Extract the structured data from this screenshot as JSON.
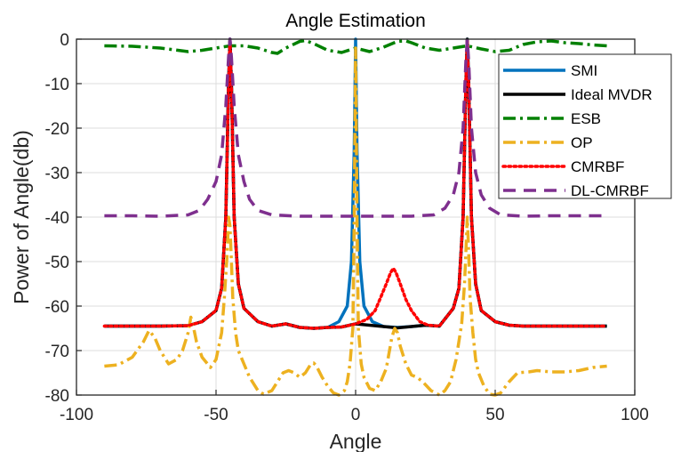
{
  "chart_data": {
    "type": "line",
    "title": "Angle Estimation",
    "xlabel": "Angle",
    "ylabel": "Power of Angle(db)",
    "xlim": [
      -100,
      100
    ],
    "ylim": [
      -80,
      0
    ],
    "xticks": [
      -100,
      -50,
      0,
      50,
      100
    ],
    "yticks": [
      0,
      -10,
      -20,
      -30,
      -40,
      -50,
      -60,
      -70,
      -80
    ],
    "xtick_labels": [
      "-100",
      "-50",
      "0",
      "50",
      "100"
    ],
    "ytick_labels": [
      "0",
      "-10",
      "-20",
      "-30",
      "-40",
      "-50",
      "-60",
      "-70",
      "-80"
    ],
    "grid": true,
    "legend_position": "top-right",
    "series": [
      {
        "name": "SMI",
        "color": "#0072BD",
        "style": "solid",
        "points": [
          [
            -90,
            -64.5
          ],
          [
            -70,
            -64.5
          ],
          [
            -60,
            -64.4
          ],
          [
            -55,
            -63.5
          ],
          [
            -50,
            -61
          ],
          [
            -48,
            -56
          ],
          [
            -46.5,
            -40
          ],
          [
            -45.5,
            -10
          ],
          [
            -45,
            0
          ],
          [
            -44.5,
            -10
          ],
          [
            -43.5,
            -40
          ],
          [
            -42,
            -55
          ],
          [
            -40,
            -60.5
          ],
          [
            -35,
            -63.5
          ],
          [
            -30,
            -64.5
          ],
          [
            -25,
            -64
          ],
          [
            -20,
            -64.8
          ],
          [
            -15,
            -65
          ],
          [
            -10,
            -64.8
          ],
          [
            -6,
            -63.5
          ],
          [
            -3,
            -60
          ],
          [
            -1.5,
            -50
          ],
          [
            -0.5,
            -25
          ],
          [
            0,
            0
          ],
          [
            0.5,
            -25
          ],
          [
            1.5,
            -50
          ],
          [
            3,
            -60
          ],
          [
            6,
            -63.5
          ],
          [
            10,
            -64.6
          ],
          [
            15,
            -64.8
          ],
          [
            20,
            -64.6
          ],
          [
            25,
            -64.3
          ],
          [
            30,
            -64.5
          ],
          [
            35,
            -60.5
          ],
          [
            37,
            -56
          ],
          [
            38.5,
            -40
          ],
          [
            39.5,
            -10
          ],
          [
            40,
            0
          ],
          [
            40.5,
            -10
          ],
          [
            41.5,
            -40
          ],
          [
            43,
            -55
          ],
          [
            45,
            -61
          ],
          [
            50,
            -63.5
          ],
          [
            55,
            -64.3
          ],
          [
            60,
            -64.5
          ],
          [
            70,
            -64.5
          ],
          [
            80,
            -64.5
          ],
          [
            90,
            -64.5
          ]
        ]
      },
      {
        "name": "Ideal MVDR",
        "color": "#000000",
        "style": "solid",
        "points": [
          [
            -90,
            -64.5
          ],
          [
            -70,
            -64.5
          ],
          [
            -60,
            -64.4
          ],
          [
            -55,
            -63.5
          ],
          [
            -50,
            -61
          ],
          [
            -48,
            -56
          ],
          [
            -46.5,
            -40
          ],
          [
            -45.5,
            -10
          ],
          [
            -45,
            0
          ],
          [
            -44.5,
            -10
          ],
          [
            -43.5,
            -40
          ],
          [
            -42,
            -55
          ],
          [
            -40,
            -60.5
          ],
          [
            -35,
            -63.5
          ],
          [
            -30,
            -64.5
          ],
          [
            -25,
            -64
          ],
          [
            -20,
            -64.8
          ],
          [
            -15,
            -65
          ],
          [
            -10,
            -64.8
          ],
          [
            -5,
            -64.7
          ],
          [
            0,
            -64
          ],
          [
            5,
            -64.3
          ],
          [
            10,
            -64.6
          ],
          [
            15,
            -64.9
          ],
          [
            20,
            -64.6
          ],
          [
            25,
            -64.3
          ],
          [
            30,
            -64.5
          ],
          [
            35,
            -60.5
          ],
          [
            37,
            -56
          ],
          [
            38.5,
            -40
          ],
          [
            39.5,
            -10
          ],
          [
            40,
            0
          ],
          [
            40.5,
            -10
          ],
          [
            41.5,
            -40
          ],
          [
            43,
            -55
          ],
          [
            45,
            -61
          ],
          [
            50,
            -63.5
          ],
          [
            55,
            -64.3
          ],
          [
            60,
            -64.5
          ],
          [
            70,
            -64.5
          ],
          [
            80,
            -64.5
          ],
          [
            90,
            -64.5
          ]
        ]
      },
      {
        "name": "ESB",
        "color": "#008000",
        "style": "dashdot",
        "points": [
          [
            -90,
            -1.5
          ],
          [
            -80,
            -1.6
          ],
          [
            -70,
            -2
          ],
          [
            -60,
            -2.8
          ],
          [
            -55,
            -2.5
          ],
          [
            -50,
            -2
          ],
          [
            -45,
            -1.5
          ],
          [
            -40,
            -1.5
          ],
          [
            -35,
            -2
          ],
          [
            -30,
            -3
          ],
          [
            -28,
            -3.2
          ],
          [
            -25,
            -2
          ],
          [
            -20,
            -0.5
          ],
          [
            -18,
            -0.3
          ],
          [
            -15,
            -1
          ],
          [
            -10,
            -2.5
          ],
          [
            -5,
            -3
          ],
          [
            0,
            -2
          ],
          [
            5,
            -2.8
          ],
          [
            10,
            -1.8
          ],
          [
            15,
            -0.5
          ],
          [
            18,
            -0.4
          ],
          [
            20,
            -0.8
          ],
          [
            25,
            -2
          ],
          [
            30,
            -2.5
          ],
          [
            35,
            -2
          ],
          [
            40,
            -1.5
          ],
          [
            45,
            -2.2
          ],
          [
            50,
            -2.8
          ],
          [
            55,
            -2.5
          ],
          [
            60,
            -1.2
          ],
          [
            65,
            -0.6
          ],
          [
            70,
            -0.4
          ],
          [
            75,
            -0.8
          ],
          [
            80,
            -1
          ],
          [
            85,
            -1.3
          ],
          [
            90,
            -1.5
          ]
        ]
      },
      {
        "name": "OP",
        "color": "#EDB120",
        "style": "dashdot",
        "points": [
          [
            -90,
            -73.5
          ],
          [
            -85,
            -73.2
          ],
          [
            -80,
            -71.5
          ],
          [
            -76,
            -68
          ],
          [
            -74,
            -65.5
          ],
          [
            -72,
            -67
          ],
          [
            -70,
            -70
          ],
          [
            -67,
            -73
          ],
          [
            -64,
            -72
          ],
          [
            -62,
            -70
          ],
          [
            -60,
            -66
          ],
          [
            -59,
            -62.5
          ],
          [
            -58,
            -65
          ],
          [
            -57,
            -68
          ],
          [
            -55,
            -71.5
          ],
          [
            -52,
            -73.8
          ],
          [
            -50,
            -72
          ],
          [
            -48,
            -66
          ],
          [
            -47,
            -58
          ],
          [
            -46,
            -48
          ],
          [
            -45.5,
            -40
          ],
          [
            -45,
            -42
          ],
          [
            -44.5,
            -50
          ],
          [
            -44,
            -58
          ],
          [
            -43,
            -66
          ],
          [
            -42,
            -70
          ],
          [
            -40,
            -73
          ],
          [
            -38,
            -76
          ],
          [
            -35,
            -79
          ],
          [
            -33,
            -79.8
          ],
          [
            -30,
            -79
          ],
          [
            -28,
            -77
          ],
          [
            -26,
            -75
          ],
          [
            -24,
            -74.5
          ],
          [
            -22,
            -75
          ],
          [
            -20,
            -76
          ],
          [
            -18,
            -75
          ],
          [
            -16,
            -73
          ],
          [
            -15,
            -72.8
          ],
          [
            -14,
            -73.5
          ],
          [
            -12,
            -76
          ],
          [
            -10,
            -78
          ],
          [
            -8,
            -79.5
          ],
          [
            -6,
            -80
          ],
          [
            -4,
            -79
          ],
          [
            -3,
            -77
          ],
          [
            -2,
            -73
          ],
          [
            -1,
            -65
          ],
          [
            -0.5,
            -40
          ],
          [
            0,
            -2
          ],
          [
            0.5,
            -40
          ],
          [
            1,
            -65
          ],
          [
            2,
            -73
          ],
          [
            3,
            -76
          ],
          [
            5,
            -78.5
          ],
          [
            7,
            -79
          ],
          [
            9,
            -77
          ],
          [
            11,
            -74
          ],
          [
            13,
            -67
          ],
          [
            14,
            -65
          ],
          [
            15,
            -66
          ],
          [
            16,
            -69
          ],
          [
            18,
            -73
          ],
          [
            20,
            -75.5
          ],
          [
            22,
            -76
          ],
          [
            24,
            -77
          ],
          [
            27,
            -79
          ],
          [
            30,
            -80
          ],
          [
            32,
            -79
          ],
          [
            34,
            -77
          ],
          [
            36,
            -72
          ],
          [
            38,
            -64
          ],
          [
            39,
            -55
          ],
          [
            39.5,
            -48
          ],
          [
            40,
            -40
          ],
          [
            40.5,
            -48
          ],
          [
            41,
            -58
          ],
          [
            42,
            -66
          ],
          [
            43,
            -72
          ],
          [
            44,
            -75
          ],
          [
            46,
            -78
          ],
          [
            48,
            -79.8
          ],
          [
            50,
            -80
          ],
          [
            52,
            -79.5
          ],
          [
            55,
            -77
          ],
          [
            58,
            -75
          ],
          [
            62,
            -74.8
          ],
          [
            65,
            -74.5
          ],
          [
            70,
            -74.8
          ],
          [
            75,
            -74.8
          ],
          [
            80,
            -74.5
          ],
          [
            85,
            -73.8
          ],
          [
            90,
            -73.5
          ]
        ]
      },
      {
        "name": "CMRBF",
        "color": "#FF0000",
        "style": "dotted",
        "points": [
          [
            -90,
            -64.5
          ],
          [
            -70,
            -64.5
          ],
          [
            -60,
            -64.4
          ],
          [
            -55,
            -63.5
          ],
          [
            -50,
            -61
          ],
          [
            -48,
            -56
          ],
          [
            -46.5,
            -40
          ],
          [
            -45.5,
            -10
          ],
          [
            -45,
            0
          ],
          [
            -44.5,
            -10
          ],
          [
            -43.5,
            -40
          ],
          [
            -42,
            -55
          ],
          [
            -40,
            -60.5
          ],
          [
            -35,
            -63.5
          ],
          [
            -30,
            -64.5
          ],
          [
            -25,
            -64
          ],
          [
            -20,
            -64.8
          ],
          [
            -15,
            -65
          ],
          [
            -10,
            -64.8
          ],
          [
            -5,
            -64.7
          ],
          [
            0,
            -64
          ],
          [
            4,
            -63
          ],
          [
            7,
            -61
          ],
          [
            9,
            -58
          ],
          [
            11,
            -55
          ],
          [
            12.5,
            -52.5
          ],
          [
            13.5,
            -51.5
          ],
          [
            14.5,
            -52.5
          ],
          [
            16,
            -55
          ],
          [
            18,
            -58.5
          ],
          [
            20,
            -61
          ],
          [
            23,
            -63.5
          ],
          [
            26,
            -64.3
          ],
          [
            30,
            -64.5
          ],
          [
            35,
            -60.5
          ],
          [
            37,
            -56
          ],
          [
            38.5,
            -40
          ],
          [
            39.5,
            -10
          ],
          [
            40,
            0
          ],
          [
            40.5,
            -10
          ],
          [
            41.5,
            -40
          ],
          [
            43,
            -55
          ],
          [
            45,
            -61
          ],
          [
            50,
            -63.5
          ],
          [
            55,
            -64.3
          ],
          [
            60,
            -64.5
          ],
          [
            70,
            -64.5
          ],
          [
            80,
            -64.5
          ],
          [
            90,
            -64.5
          ]
        ]
      },
      {
        "name": "DL-CMRBF",
        "color": "#7E2F8E",
        "style": "dashed",
        "points": [
          [
            -90,
            -39.7
          ],
          [
            -80,
            -39.7
          ],
          [
            -70,
            -39.8
          ],
          [
            -60,
            -39.5
          ],
          [
            -56,
            -38.5
          ],
          [
            -53,
            -36
          ],
          [
            -50,
            -32
          ],
          [
            -48,
            -26
          ],
          [
            -46.5,
            -15
          ],
          [
            -45.5,
            -4
          ],
          [
            -45,
            0
          ],
          [
            -44.5,
            -4
          ],
          [
            -43.5,
            -15
          ],
          [
            -42,
            -26
          ],
          [
            -40,
            -32
          ],
          [
            -38,
            -36
          ],
          [
            -35,
            -38.5
          ],
          [
            -30,
            -39.5
          ],
          [
            -20,
            -39.8
          ],
          [
            -10,
            -39.8
          ],
          [
            0,
            -39.8
          ],
          [
            10,
            -39.8
          ],
          [
            20,
            -39.8
          ],
          [
            28,
            -39.5
          ],
          [
            32,
            -38
          ],
          [
            35,
            -35
          ],
          [
            37,
            -30
          ],
          [
            38.5,
            -20
          ],
          [
            39.5,
            -5
          ],
          [
            40,
            0
          ],
          [
            40.5,
            -5
          ],
          [
            41.5,
            -20
          ],
          [
            43,
            -30
          ],
          [
            45,
            -35
          ],
          [
            48,
            -38
          ],
          [
            52,
            -39.5
          ],
          [
            60,
            -39.8
          ],
          [
            70,
            -39.7
          ],
          [
            80,
            -39.7
          ],
          [
            90,
            -39.7
          ]
        ]
      }
    ]
  }
}
